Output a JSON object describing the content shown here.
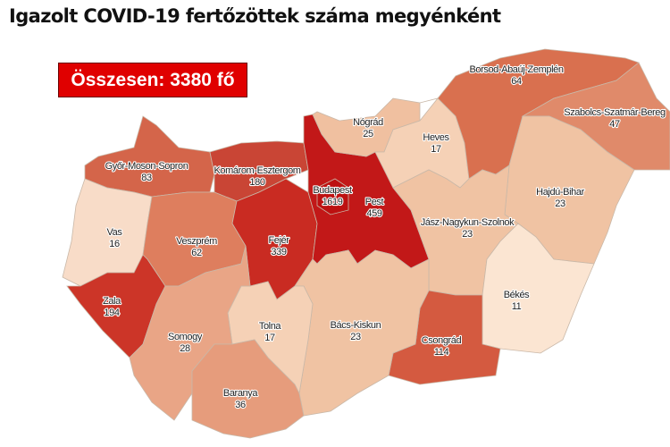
{
  "title": "Igazolt COVID-19 fertőzöttek száma megyénként",
  "total_label": "Összesen: 3380 fő",
  "counties": [
    {
      "id": "gyor",
      "name": "Győr-Moson-Sopron",
      "value": "83",
      "color": "#d4654a"
    },
    {
      "id": "komarom",
      "name": "Komárom-Esztergom",
      "value": "180",
      "color": "#c94535"
    },
    {
      "id": "vas",
      "name": "Vas",
      "value": "16",
      "color": "#f8dcc8"
    },
    {
      "id": "veszprem",
      "name": "Veszprém",
      "value": "62",
      "color": "#de7e5e"
    },
    {
      "id": "fejer",
      "name": "Fejér",
      "value": "339",
      "color": "#c92b22"
    },
    {
      "id": "zala",
      "name": "Zala",
      "value": "194",
      "color": "#cc3528"
    },
    {
      "id": "pest",
      "name": "Pest",
      "value": "459",
      "color": "#c21818"
    },
    {
      "id": "budapest",
      "name": "Budapest",
      "value": "1619",
      "color": "#bd1010"
    },
    {
      "id": "nograd",
      "name": "Nógrád",
      "value": "25",
      "color": "#f0c0a0"
    },
    {
      "id": "heves",
      "name": "Heves",
      "value": "17",
      "color": "#f5d1b6"
    },
    {
      "id": "borsod",
      "name": "Borsod-Abaúj-Zemplén",
      "value": "64",
      "color": "#d9704f"
    },
    {
      "id": "szabolcs",
      "name": "Szabolcs-Szatmár-Bereg",
      "value": "47",
      "color": "#e08a6a"
    },
    {
      "id": "hajdu",
      "name": "Hajdú-Bihar",
      "value": "23",
      "color": "#f0c3a3"
    },
    {
      "id": "jasz",
      "name": "Jász-Nagykun-Szolnok",
      "value": "23",
      "color": "#f0c3a3"
    },
    {
      "id": "bekes",
      "name": "Békés",
      "value": "11",
      "color": "#fbe5d2"
    },
    {
      "id": "csongrad",
      "name": "Csongrád",
      "value": "114",
      "color": "#d45a40"
    },
    {
      "id": "bacs",
      "name": "Bács-Kiskun",
      "value": "23",
      "color": "#f0c3a3"
    },
    {
      "id": "tolna",
      "name": "Tolna",
      "value": "17",
      "color": "#f5d1b6"
    },
    {
      "id": "somogy",
      "name": "Somogy",
      "value": "28",
      "color": "#e9a586"
    },
    {
      "id": "baranya",
      "name": "Baranya",
      "value": "36",
      "color": "#e69c7c"
    }
  ]
}
